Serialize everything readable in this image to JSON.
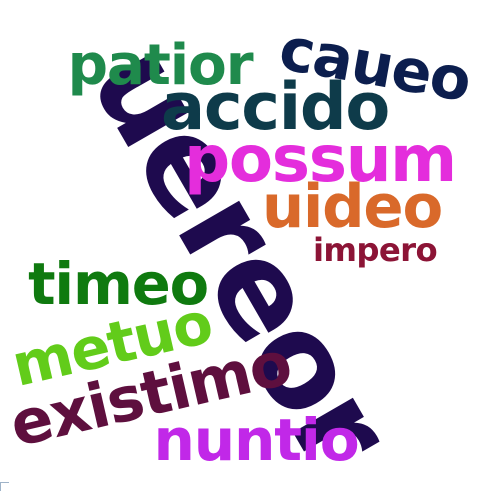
{
  "word_cloud": {
    "words": [
      {
        "text": "uereor",
        "color": "#1e0a4e"
      },
      {
        "text": "patior",
        "color": "#1f8a4c"
      },
      {
        "text": "caueo",
        "color": "#0c1e4e"
      },
      {
        "text": "accido",
        "color": "#0e3b4a"
      },
      {
        "text": "possum",
        "color": "#e42ddc"
      },
      {
        "text": "uideo",
        "color": "#d9692a"
      },
      {
        "text": "impero",
        "color": "#8c1436"
      },
      {
        "text": "timeo",
        "color": "#0f7a0f"
      },
      {
        "text": "metuo",
        "color": "#62cc1a"
      },
      {
        "text": "existimo",
        "color": "#5e0f3e"
      },
      {
        "text": "nuntio",
        "color": "#c128e8"
      }
    ]
  }
}
